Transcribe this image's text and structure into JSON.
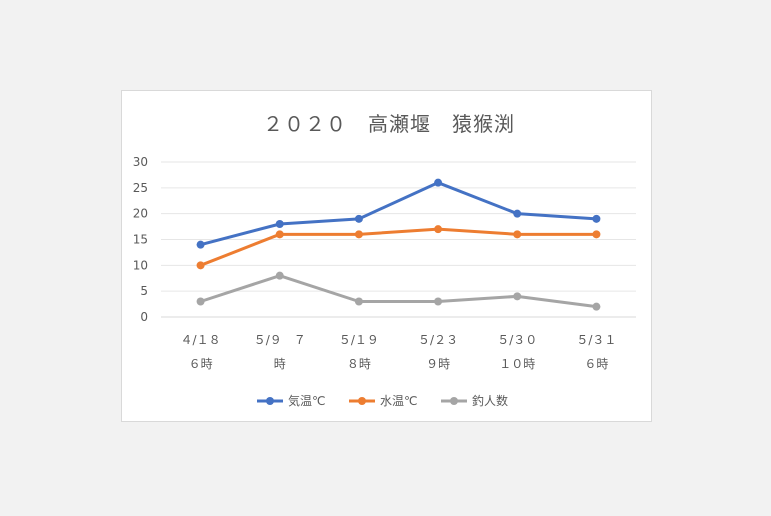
{
  "chart_data": {
    "type": "line",
    "title": "２０２０　高瀬堰　猿猴渕",
    "categories": [
      [
        "４/１８",
        "６時"
      ],
      [
        "５/９　７",
        "時"
      ],
      [
        "５/１９",
        "８時"
      ],
      [
        "５/２３",
        "９時"
      ],
      [
        "５/３０",
        "１０時"
      ],
      [
        "５/３１",
        "６時"
      ]
    ],
    "y_ticks": [
      0,
      5,
      10,
      15,
      20,
      25,
      30
    ],
    "ylim": [
      0,
      30
    ],
    "grid": true,
    "legend_position": "bottom",
    "series": [
      {
        "name": "気温℃",
        "color": "#4472c4",
        "values": [
          14,
          18,
          19,
          26,
          20,
          19
        ]
      },
      {
        "name": "水温℃",
        "color": "#ed7d31",
        "values": [
          10,
          16,
          16,
          17,
          16,
          16
        ]
      },
      {
        "name": "釣人数",
        "color": "#a5a5a5",
        "values": [
          3,
          8,
          3,
          3,
          4,
          2
        ]
      }
    ]
  }
}
